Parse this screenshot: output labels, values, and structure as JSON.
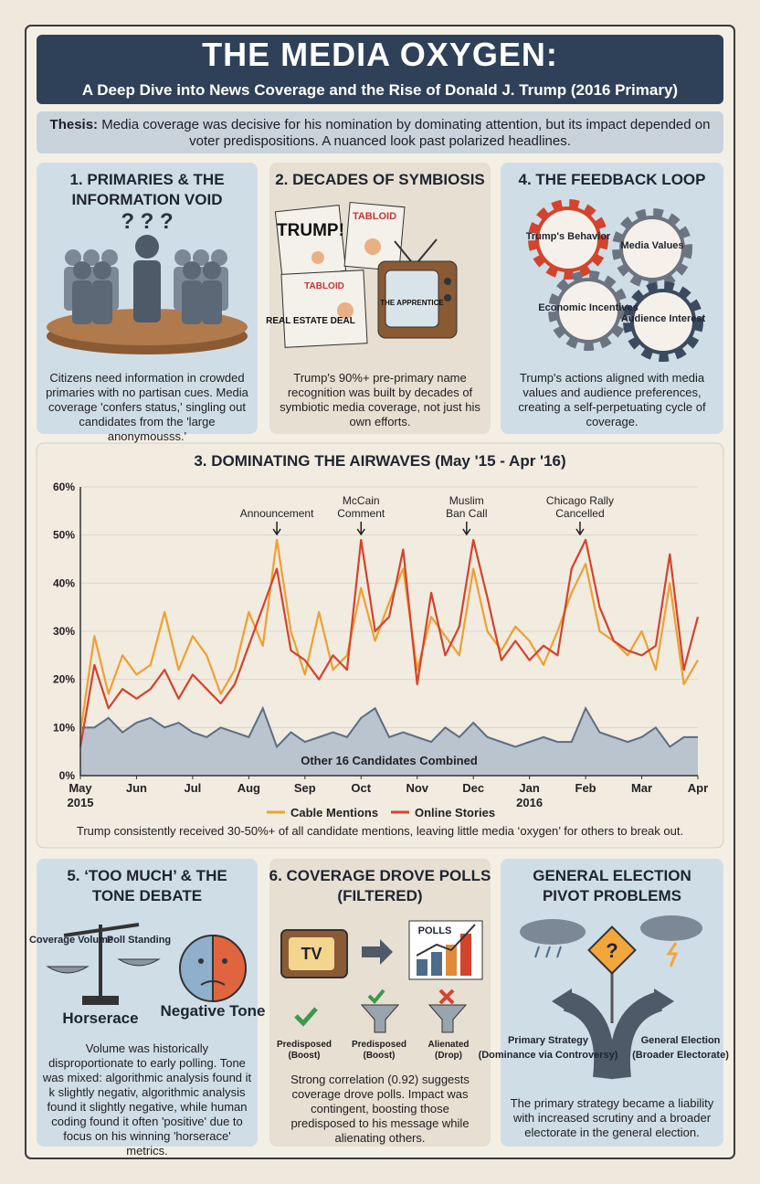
{
  "header": {
    "title": "THE MEDIA OXYGEN:",
    "subtitle": "A Deep Dive into News Coverage and the Rise of Donald J. Trump (2016 Primary)"
  },
  "thesis": {
    "label": "Thesis:",
    "text": "Media coverage was decisive for his nomination by dominating attention, but its impact depended on voter predispositions. A nuanced look past polarized headlines."
  },
  "panels": [
    {
      "title": [
        "1. PRIMARIES & THE",
        "INFORMATION VOID"
      ],
      "marks": "? ? ?",
      "body": "Citizens need information in crowded primaries with no partisan cues. Media coverage 'confers status,' singling out candidates from the 'large anonymousss.'"
    },
    {
      "title": [
        "2. DECADES OF SYMBIOSIS"
      ],
      "labels": [
        "TRUMP!",
        "TABLOID",
        "REAL ESTATE DEAL",
        "THE APPRENTICE"
      ],
      "body": "Trump's 90%+ pre-primary name recognition was built by decades of symbiotic media coverage, not just his own efforts."
    },
    {
      "title": [
        "4. THE FEEDBACK LOOP"
      ],
      "labels": [
        "Trump's Behavior",
        "Media Values",
        "Economic Incentives",
        "Audience Interest"
      ],
      "body": "Trump's actions aligned with media values and audience preferences, creating a self-perpetuating cycle of coverage."
    },
    {
      "title": [
        "5. ‘TOO MUCH’ & THE",
        "TONE DEBATE"
      ],
      "labels": [
        "Coverage Volume",
        "Poll Standing",
        "Horserace",
        "Negative Tone"
      ],
      "body": "Volume was historically disproportionate to early polling. Tone was mixed: algorithmic analysis found it k slightly negativ, algorithmic analysis found it slightly negative, while human coding found it often 'positive' due to focus on his winning 'horserace' metrics."
    },
    {
      "title": [
        "6. COVERAGE DROVE POLLS",
        "(FILTERED)"
      ],
      "labels": [
        "TV",
        "POLLS",
        "Predisposed (Boost)",
        "Predisposed (Boost)",
        "Alienated (Drop)"
      ],
      "body": "Strong correlation (0.92) suggests coverage drove polls. Impact was contingent, boosting those predisposed to his message while alienating others."
    },
    {
      "title": [
        "GENERAL ELECTION",
        "PIVOT PROBLEMS"
      ],
      "labels": [
        "?",
        "Primary Strategy",
        "(Dominance via Controversy)",
        "General Election",
        "(Broader Electorate)"
      ],
      "body": "The primary strategy became a liability with increased scrutiny and a broader electorate in the general election."
    }
  ],
  "chart_data": {
    "type": "line",
    "title": "3. DOMINATING THE AIRWAVES (May '15 - Apr '16)",
    "caption": "Trump consistently received 30-50%+ of all candidate mentions, leaving little media ‘oxygen’ for others to break out.",
    "x": [
      0,
      0.25,
      0.5,
      0.75,
      1,
      1.25,
      1.5,
      1.75,
      2,
      2.25,
      2.5,
      2.75,
      3,
      3.25,
      3.5,
      3.75,
      4,
      4.25,
      4.5,
      4.75,
      5,
      5.25,
      5.5,
      5.75,
      6,
      6.25,
      6.5,
      6.75,
      7,
      7.25,
      7.5,
      7.75,
      8,
      8.25,
      8.5,
      8.75,
      9,
      9.25,
      9.5,
      9.75,
      10,
      10.25,
      10.5,
      10.75,
      11
    ],
    "xlim": [
      0,
      11
    ],
    "xticks": [
      {
        "value": 0,
        "label": "May"
      },
      {
        "value": 1,
        "label": "Jun"
      },
      {
        "value": 2,
        "label": "Jul"
      },
      {
        "value": 3,
        "label": "Aug"
      },
      {
        "value": 4,
        "label": "Sep"
      },
      {
        "value": 5,
        "label": "Oct"
      },
      {
        "value": 6,
        "label": "Nov"
      },
      {
        "value": 7,
        "label": "Dec"
      },
      {
        "value": 8,
        "label": "Jan"
      },
      {
        "value": 9,
        "label": "Feb"
      },
      {
        "value": 10,
        "label": "Mar"
      },
      {
        "value": 11,
        "label": "Apr"
      }
    ],
    "year_labels": [
      {
        "value": 0,
        "label": "2015"
      },
      {
        "value": 8,
        "label": "2016"
      }
    ],
    "ylim": [
      0,
      60
    ],
    "yticks": [
      {
        "value": 0,
        "label": "0%"
      },
      {
        "value": 10,
        "label": "10%"
      },
      {
        "value": 20,
        "label": "20%"
      },
      {
        "value": 30,
        "label": "30%"
      },
      {
        "value": 40,
        "label": "40%"
      },
      {
        "value": 50,
        "label": "50%"
      },
      {
        "value": 60,
        "label": "60%"
      }
    ],
    "grid": true,
    "series": [
      {
        "name": "Cable Mentions",
        "color": "#eea032",
        "values": [
          9,
          29,
          17,
          25,
          21,
          23,
          34,
          22,
          29,
          25,
          17,
          22,
          34,
          27,
          49,
          30,
          21,
          34,
          22,
          25,
          39,
          28,
          36,
          43,
          22,
          33,
          29,
          25,
          43,
          30,
          26,
          31,
          28,
          23,
          30,
          38,
          44,
          30,
          28,
          25,
          30,
          22,
          40,
          19,
          24
        ]
      },
      {
        "name": "Online Stories",
        "color": "#d4432b",
        "values": [
          6,
          23,
          14,
          18,
          16,
          18,
          22,
          16,
          21,
          18,
          15,
          19,
          27,
          35,
          43,
          26,
          24,
          20,
          25,
          22,
          49,
          30,
          33,
          47,
          19,
          38,
          25,
          31,
          49,
          37,
          24,
          28,
          24,
          27,
          25,
          43,
          49,
          35,
          28,
          26,
          25,
          27,
          46,
          22,
          33
        ]
      },
      {
        "name": "Other 16 Candidates Combined",
        "type": "area",
        "color": "#5d6d82",
        "values": [
          10,
          10,
          12,
          9,
          11,
          12,
          10,
          11,
          9,
          8,
          10,
          9,
          8,
          14,
          6,
          9,
          7,
          8,
          9,
          8,
          12,
          14,
          8,
          9,
          8,
          7,
          10,
          8,
          11,
          8,
          7,
          6,
          7,
          8,
          7,
          7,
          14,
          9,
          8,
          7,
          8,
          10,
          6,
          8,
          8
        ]
      }
    ],
    "annotations": [
      {
        "lines": [
          "Announcement"
        ],
        "x": 3.5
      },
      {
        "lines": [
          "McCain",
          "Comment"
        ],
        "x": 5
      },
      {
        "lines": [
          "Muslim",
          "Ban Call"
        ],
        "x": 6.88
      },
      {
        "lines": [
          "Chicago Rally",
          "Cancelled"
        ],
        "x": 8.9
      }
    ]
  }
}
